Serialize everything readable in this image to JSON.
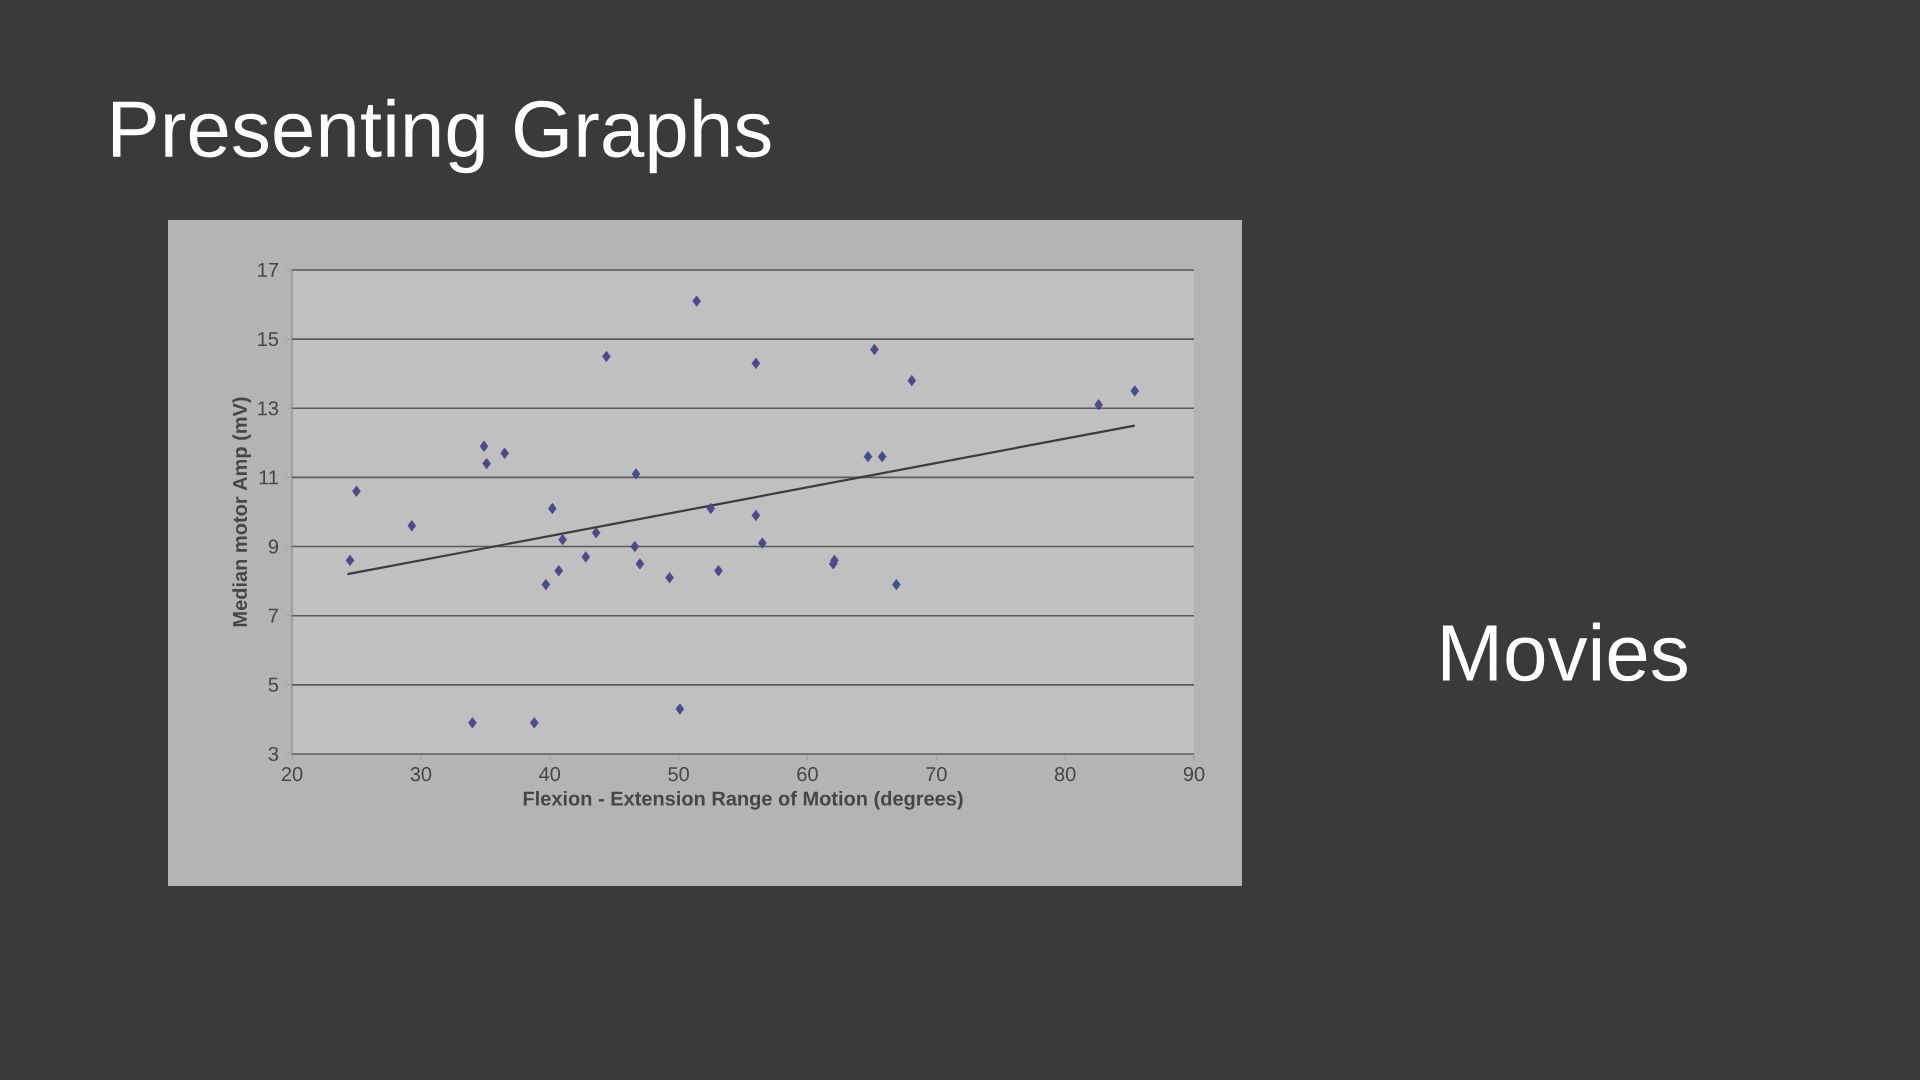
{
  "chart_data": {
    "type": "scatter",
    "title": "Presenting Graphs",
    "annotations": [
      "Movies"
    ],
    "xlabel": "Flexion - Extension Range of Motion (degrees)",
    "ylabel": "Median motor Amp (mV)",
    "xlim": [
      20,
      90
    ],
    "ylim": [
      3,
      17
    ],
    "xticks": [
      20,
      30,
      40,
      50,
      60,
      70,
      80,
      90
    ],
    "yticks": [
      3,
      5,
      7,
      9,
      11,
      13,
      15,
      17
    ],
    "grid": "y",
    "series": [
      {
        "marker": "diamond",
        "color": "#4a4a8c",
        "x": [
          24.5,
          25.0,
          29.3,
          34.0,
          34.9,
          35.1,
          36.5,
          38.8,
          39.7,
          40.2,
          40.7,
          41.0,
          42.8,
          43.6,
          44.4,
          46.7,
          46.6,
          47.0,
          49.3,
          50.1,
          51.4,
          52.5,
          53.1,
          56.0,
          56.0,
          56.5,
          62.0,
          62.1,
          64.7,
          65.2,
          65.8,
          66.9,
          68.1,
          82.6,
          85.4
        ],
        "values": [
          8.6,
          10.6,
          9.6,
          3.9,
          11.9,
          11.4,
          11.7,
          3.9,
          7.9,
          10.1,
          8.3,
          9.2,
          8.7,
          9.4,
          14.5,
          11.1,
          9.0,
          8.5,
          8.1,
          4.3,
          16.1,
          10.1,
          8.3,
          14.3,
          9.9,
          9.1,
          8.5,
          8.6,
          11.6,
          14.7,
          11.6,
          7.9,
          13.8,
          13.1,
          13.5
        ]
      },
      {
        "type": "line",
        "marker": "none",
        "color": "#3c3c3c",
        "x": [
          24.3,
          85.4
        ],
        "values": [
          8.2,
          12.5
        ]
      }
    ]
  }
}
